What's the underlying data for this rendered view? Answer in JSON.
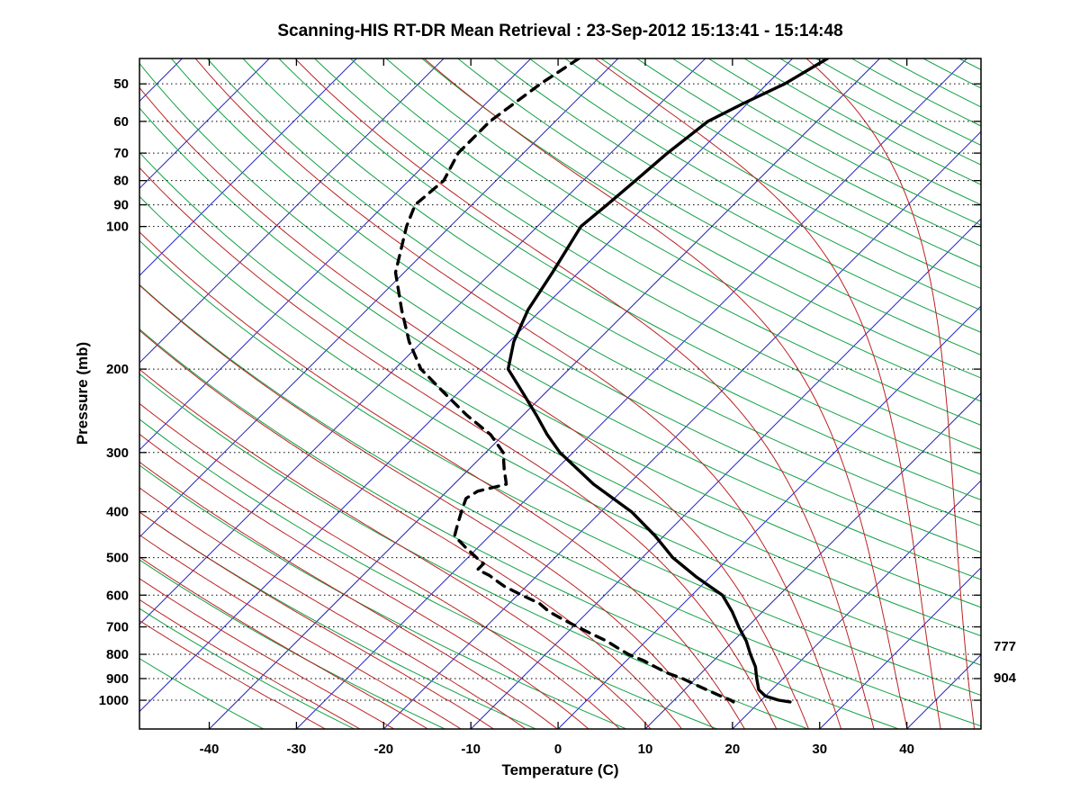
{
  "title": "Scanning-HIS RT-DR Mean Retrieval : 23-Sep-2012 15:13:41 - 15:14:48",
  "chart_data": {
    "type": "line",
    "subtype": "skew-t log-p atmospheric sounding",
    "xlabel": "Temperature (C)",
    "ylabel": "Pressure (mb)",
    "x_ticks": [
      -40,
      -30,
      -20,
      -10,
      0,
      10,
      20,
      30,
      40
    ],
    "y_ticks": [
      50,
      60,
      70,
      80,
      90,
      100,
      200,
      300,
      400,
      500,
      600,
      700,
      800,
      900,
      1000
    ],
    "pressure_range_mb": [
      44.2,
      1150
    ],
    "surface_temp_range_c": [
      -48,
      48.5
    ],
    "skew": "isotherms slant 45deg up-right, 1px right per 1px up",
    "grid": "dotted horizontal black lines at labeled pressure ticks",
    "series": [
      {
        "name": "temperature",
        "line": "solid",
        "color": "#000000",
        "points_p_t": [
          [
            44.2,
            -46
          ],
          [
            50,
            -48
          ],
          [
            55,
            -50.5
          ],
          [
            60,
            -52.5
          ],
          [
            70,
            -53.5
          ],
          [
            80,
            -54
          ],
          [
            90,
            -54.5
          ],
          [
            100,
            -55
          ],
          [
            125,
            -53
          ],
          [
            150,
            -51.5
          ],
          [
            175,
            -49.5
          ],
          [
            200,
            -47
          ],
          [
            225,
            -42.5
          ],
          [
            250,
            -38.5
          ],
          [
            275,
            -35
          ],
          [
            300,
            -31.5
          ],
          [
            350,
            -24
          ],
          [
            400,
            -16.5
          ],
          [
            450,
            -11
          ],
          [
            500,
            -6.5
          ],
          [
            550,
            -1.5
          ],
          [
            600,
            3.5
          ],
          [
            650,
            6.5
          ],
          [
            700,
            9
          ],
          [
            750,
            11.5
          ],
          [
            800,
            13.5
          ],
          [
            850,
            15.5
          ],
          [
            900,
            17
          ],
          [
            950,
            18.5
          ],
          [
            980,
            20
          ],
          [
            1000,
            22
          ],
          [
            1008,
            23.5
          ]
        ]
      },
      {
        "name": "dew_point",
        "line": "dashed",
        "color": "#000000",
        "points_p_t": [
          [
            44.2,
            -74.5
          ],
          [
            50,
            -76
          ],
          [
            60,
            -77.5
          ],
          [
            70,
            -77.5
          ],
          [
            80,
            -76
          ],
          [
            90,
            -76.5
          ],
          [
            100,
            -75
          ],
          [
            125,
            -71
          ],
          [
            150,
            -66
          ],
          [
            175,
            -61.5
          ],
          [
            200,
            -57
          ],
          [
            225,
            -51.5
          ],
          [
            250,
            -46.5
          ],
          [
            275,
            -41.5
          ],
          [
            300,
            -38
          ],
          [
            325,
            -36
          ],
          [
            350,
            -34
          ],
          [
            362,
            -36.5
          ],
          [
            375,
            -37
          ],
          [
            400,
            -36
          ],
          [
            425,
            -35
          ],
          [
            450,
            -34
          ],
          [
            475,
            -31.5
          ],
          [
            500,
            -29
          ],
          [
            515,
            -27.5
          ],
          [
            530,
            -27.5
          ],
          [
            545,
            -25.5
          ],
          [
            560,
            -24
          ],
          [
            575,
            -22.5
          ],
          [
            600,
            -19.5
          ],
          [
            625,
            -16.5
          ],
          [
            650,
            -14.5
          ],
          [
            675,
            -12
          ],
          [
            700,
            -9.5
          ],
          [
            725,
            -7
          ],
          [
            750,
            -4.5
          ],
          [
            775,
            -2.5
          ],
          [
            800,
            -0.5
          ],
          [
            825,
            2
          ],
          [
            850,
            4
          ],
          [
            875,
            6
          ],
          [
            900,
            8.5
          ],
          [
            925,
            10.5
          ],
          [
            950,
            12.5
          ],
          [
            975,
            14.5
          ],
          [
            1000,
            16.5
          ],
          [
            1008,
            17
          ]
        ]
      }
    ],
    "background_lines": [
      {
        "name": "isotherms",
        "color": "#2222bb",
        "unit": "C",
        "values": [
          -120,
          -110,
          -100,
          -90,
          -80,
          -70,
          -60,
          -50,
          -40,
          -30,
          -20,
          -10,
          0,
          10,
          20,
          30,
          40
        ]
      },
      {
        "name": "dry_adiabats",
        "color": "#11a044",
        "unit": "K_theta",
        "values": [
          230,
          240,
          250,
          260,
          270,
          280,
          290,
          300,
          310,
          320,
          330,
          340,
          350,
          360,
          370,
          380,
          390,
          400,
          410,
          420,
          430,
          440,
          450,
          460,
          470,
          480,
          490,
          500,
          510,
          520,
          530,
          540,
          550,
          560,
          570,
          580,
          590,
          600
        ]
      },
      {
        "name": "moist_adiabats",
        "color": "#bb2222",
        "unit": "C_thetaw",
        "values": [
          -36,
          -32,
          -28,
          -24,
          -20,
          -16,
          -12,
          -8,
          -4,
          0,
          4,
          8,
          12,
          16,
          20,
          24,
          28,
          32,
          36,
          40,
          44
        ]
      }
    ],
    "right_annotations": [
      {
        "text": "777",
        "pressure_mb": 777
      },
      {
        "text": "904",
        "pressure_mb": 904
      }
    ]
  }
}
